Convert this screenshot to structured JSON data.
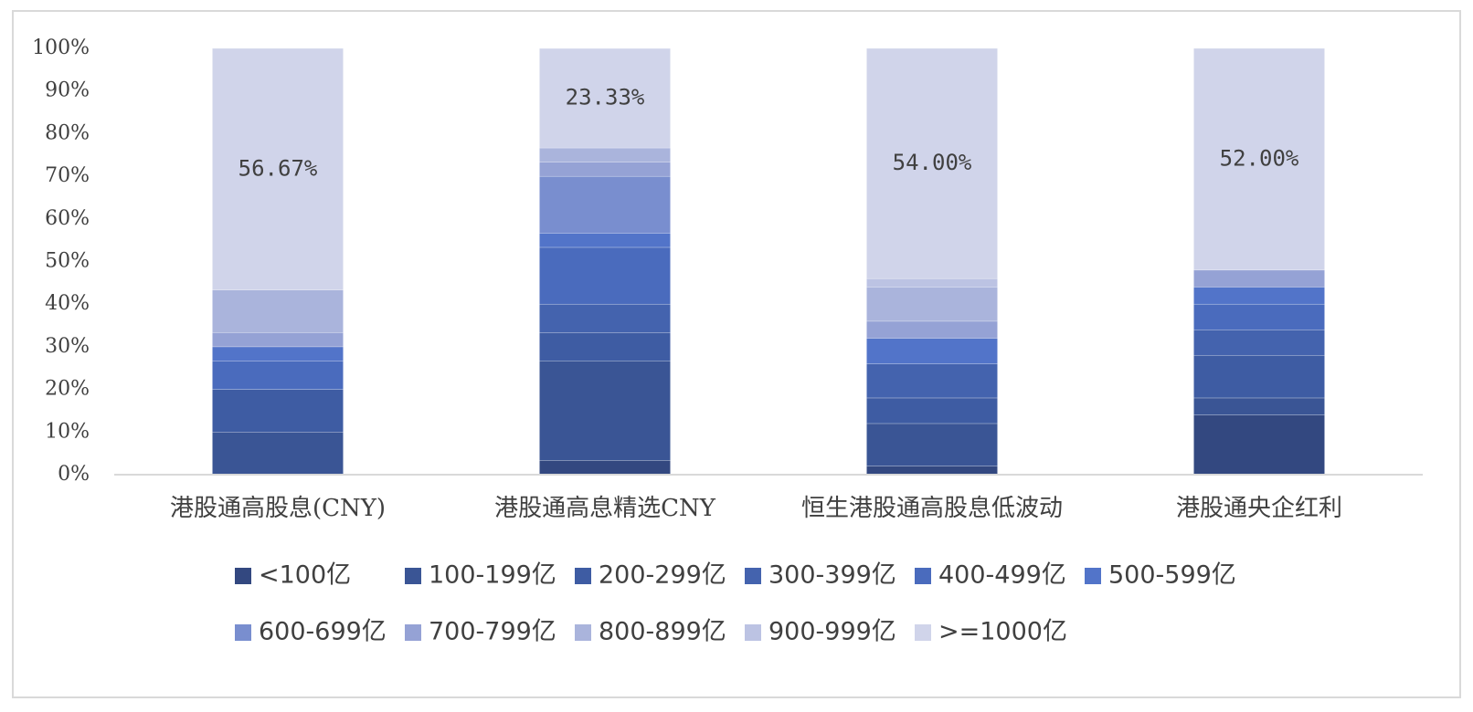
{
  "chart_data": {
    "type": "stacked_bar",
    "categories": [
      "港股通高股息(CNY)",
      "港股通高息精选CNY",
      "恒生港股通高股息低波动",
      "港股通央企红利"
    ],
    "ylim": [
      0,
      100
    ],
    "yticks": [
      {
        "value": 0,
        "label": "0%"
      },
      {
        "value": 10,
        "label": "10%"
      },
      {
        "value": 20,
        "label": "20%"
      },
      {
        "value": 30,
        "label": "30%"
      },
      {
        "value": 40,
        "label": "40%"
      },
      {
        "value": 50,
        "label": "50%"
      },
      {
        "value": 60,
        "label": "60%"
      },
      {
        "value": 70,
        "label": "70%"
      },
      {
        "value": 80,
        "label": "80%"
      },
      {
        "value": 90,
        "label": "90%"
      },
      {
        "value": 100,
        "label": "100%"
      }
    ],
    "series": [
      {
        "name": "<100亿",
        "color": "#334880",
        "values": [
          0,
          3.33,
          2,
          14
        ]
      },
      {
        "name": "100-199亿",
        "color": "#3a5595",
        "values": [
          10,
          23.33,
          10,
          4
        ]
      },
      {
        "name": "200-299亿",
        "color": "#3e5ca3",
        "values": [
          10,
          6.67,
          6,
          10
        ]
      },
      {
        "name": "300-399亿",
        "color": "#4463ae",
        "values": [
          0,
          6.67,
          8,
          6
        ]
      },
      {
        "name": "400-499亿",
        "color": "#4a6bbd",
        "values": [
          6.67,
          13.33,
          0,
          6
        ]
      },
      {
        "name": "500-599亿",
        "color": "#5274c9",
        "values": [
          3.33,
          3.33,
          6,
          4
        ]
      },
      {
        "name": "600-699亿",
        "color": "#798ecf",
        "values": [
          0,
          13.33,
          0,
          0
        ]
      },
      {
        "name": "700-799亿",
        "color": "#95a2d5",
        "values": [
          3.33,
          3.33,
          4,
          4
        ]
      },
      {
        "name": "800-899亿",
        "color": "#aab4dc",
        "values": [
          10,
          3.33,
          8,
          0
        ]
      },
      {
        "name": "900-999亿",
        "color": "#bcc3e3",
        "values": [
          0,
          0,
          2,
          0
        ]
      },
      {
        "name": ">=1000亿",
        "color": "#d0d4ea",
        "values": [
          56.67,
          23.33,
          54,
          52
        ],
        "value_labels": [
          "56.67%",
          "23.33%",
          "54.00%",
          "52.00%"
        ]
      }
    ]
  }
}
